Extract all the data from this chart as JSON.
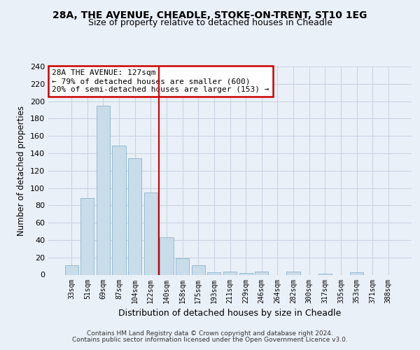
{
  "title_line1": "28A, THE AVENUE, CHEADLE, STOKE-ON-TRENT, ST10 1EG",
  "title_line2": "Size of property relative to detached houses in Cheadle",
  "xlabel": "Distribution of detached houses by size in Cheadle",
  "ylabel": "Number of detached properties",
  "categories": [
    "33sqm",
    "51sqm",
    "69sqm",
    "87sqm",
    "104sqm",
    "122sqm",
    "140sqm",
    "158sqm",
    "175sqm",
    "193sqm",
    "211sqm",
    "229sqm",
    "246sqm",
    "264sqm",
    "282sqm",
    "300sqm",
    "317sqm",
    "335sqm",
    "353sqm",
    "371sqm",
    "388sqm"
  ],
  "values": [
    11,
    88,
    195,
    149,
    134,
    95,
    43,
    19,
    11,
    3,
    4,
    2,
    4,
    0,
    4,
    0,
    1,
    0,
    3,
    0,
    0
  ],
  "bar_color": "#c9dcea",
  "bar_edge_color": "#8ab4cc",
  "grid_color": "#c8d4e4",
  "annotation_box_text": "28A THE AVENUE: 127sqm\n← 79% of detached houses are smaller (600)\n20% of semi-detached houses are larger (153) →",
  "annotation_box_color": "#ffffff",
  "annotation_box_edge_color": "#cc0000",
  "vline_color": "#cc0000",
  "vline_x": 5.5,
  "footer_line1": "Contains HM Land Registry data © Crown copyright and database right 2024.",
  "footer_line2": "Contains public sector information licensed under the Open Government Licence v3.0.",
  "background_color": "#eaf0f8",
  "plot_bg_color": "#eaf0f8",
  "ylim": [
    0,
    240
  ],
  "yticks": [
    0,
    20,
    40,
    60,
    80,
    100,
    120,
    140,
    160,
    180,
    200,
    220,
    240
  ]
}
